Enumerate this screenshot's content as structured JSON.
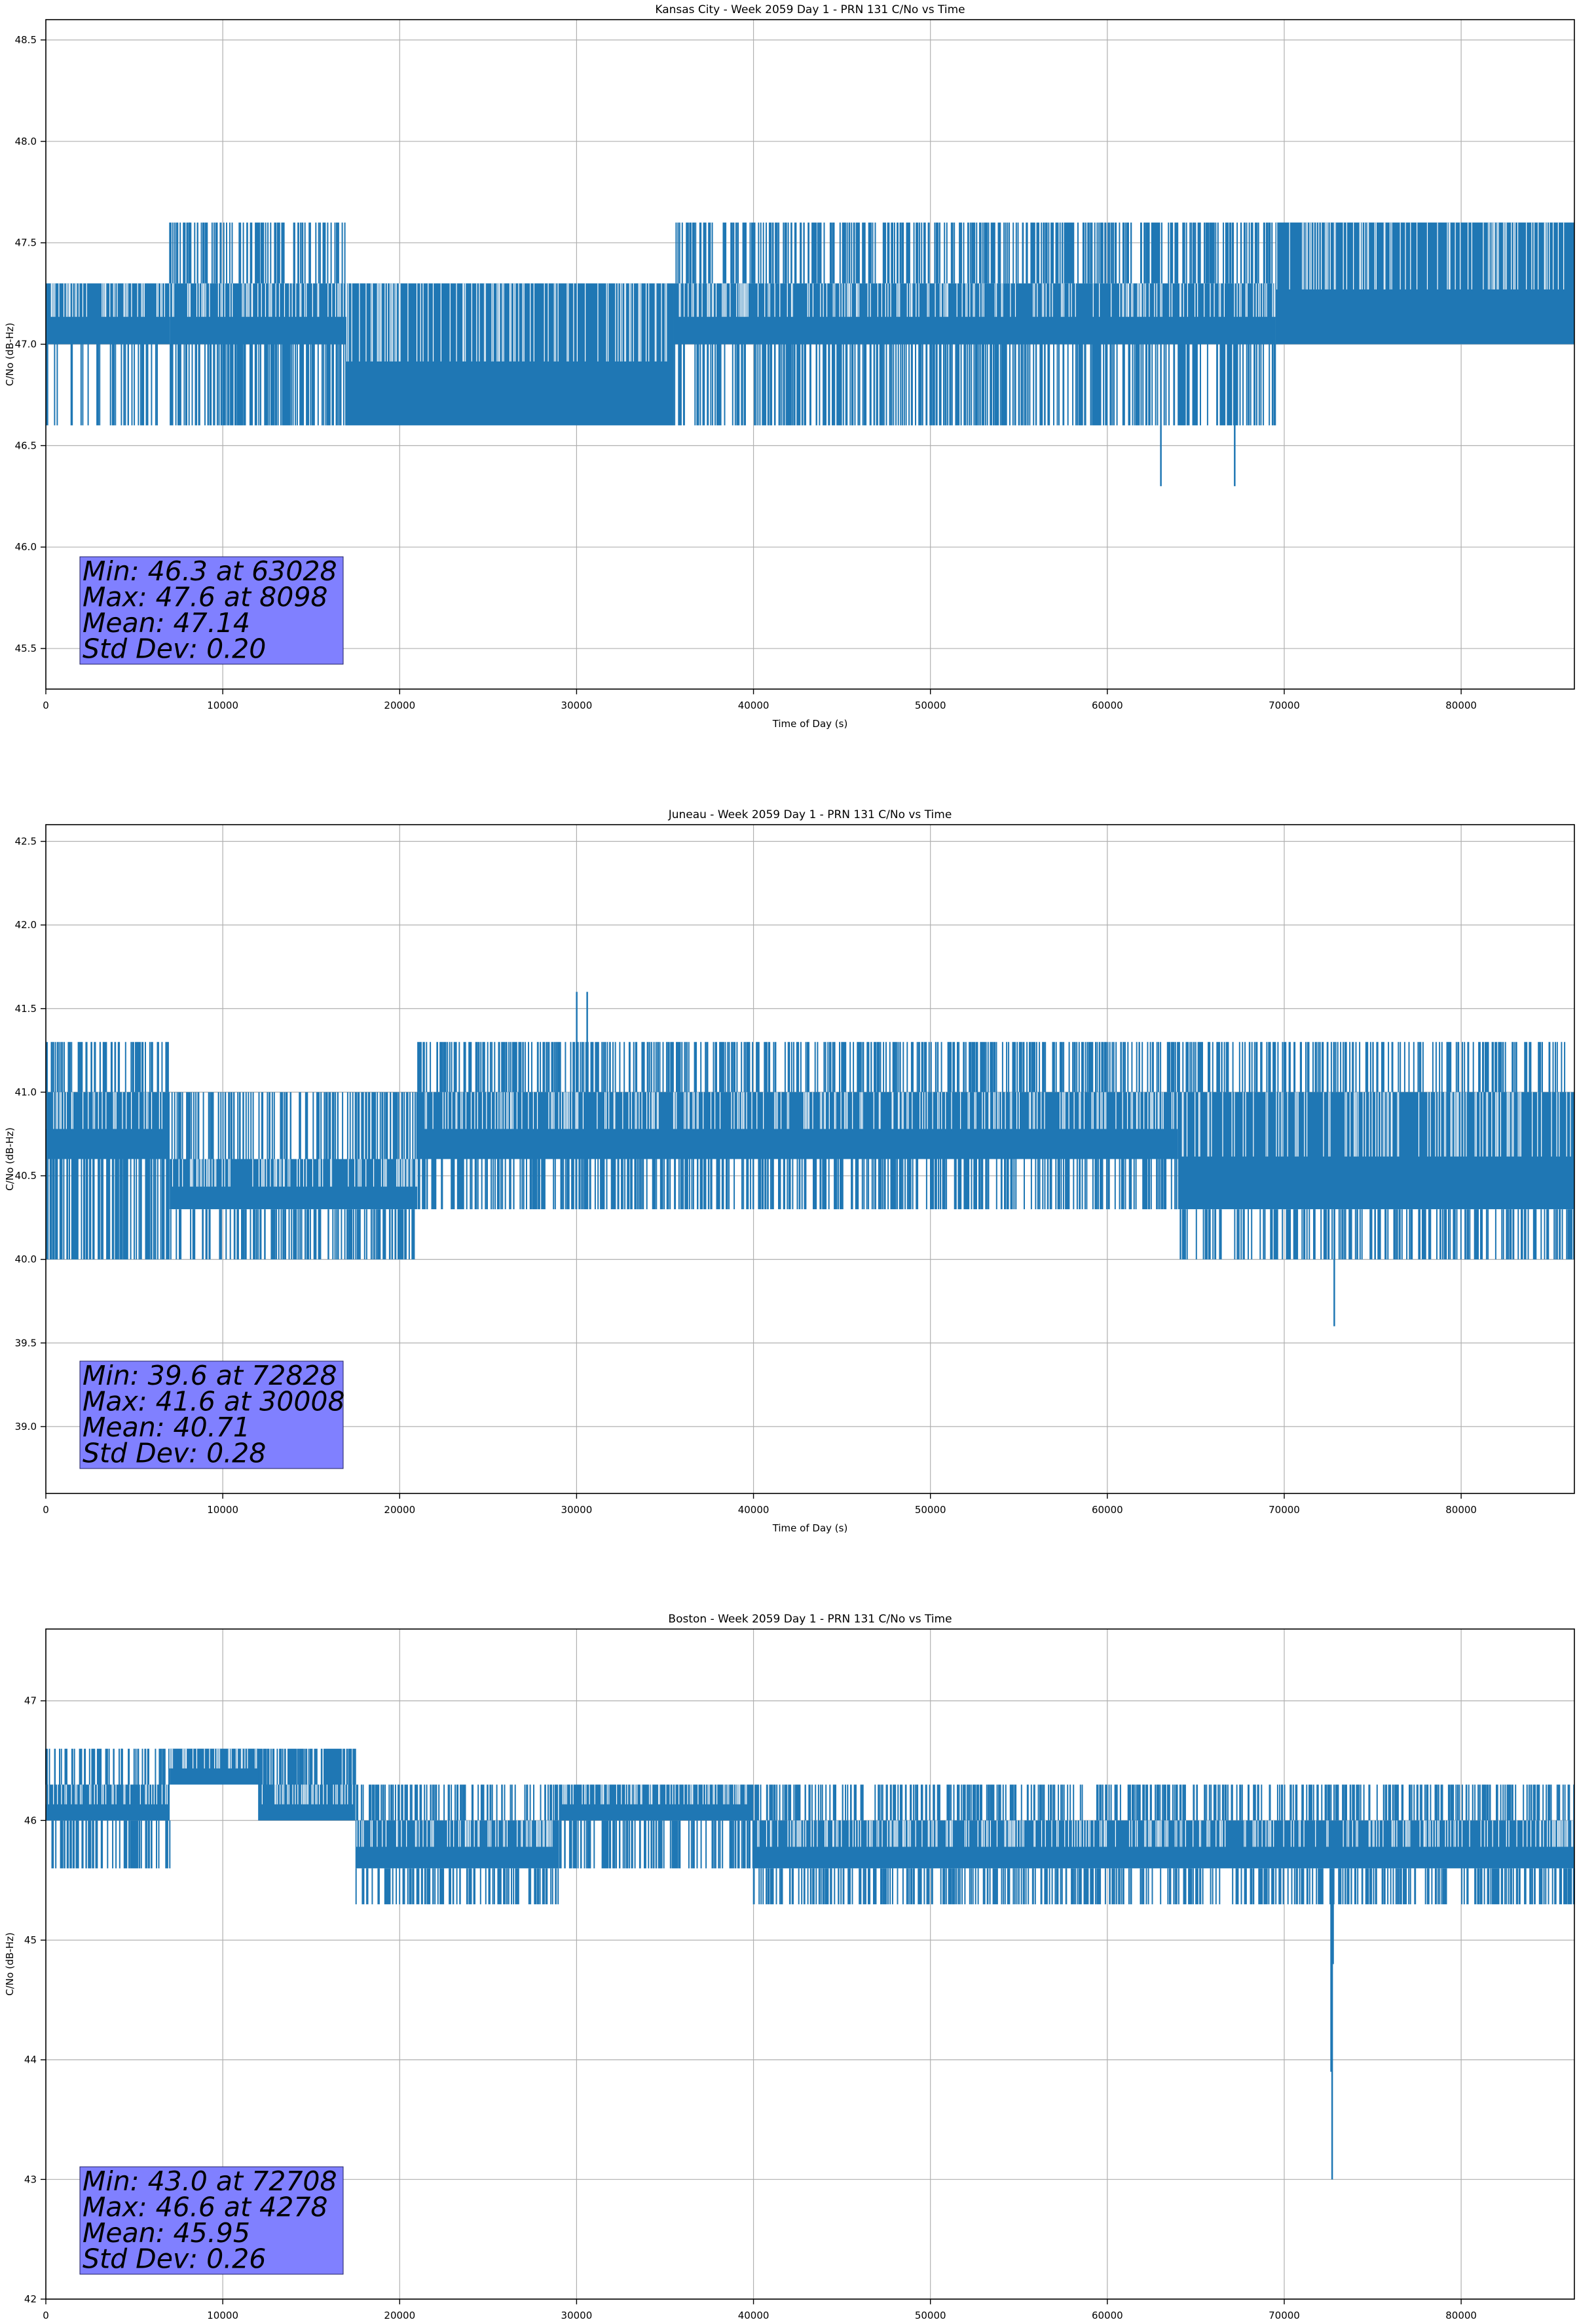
{
  "chart_data": [
    {
      "type": "line",
      "title": "Kansas City - Week 2059 Day 1 - PRN 131 C/No vs Time",
      "xlabel": "Time of Day (s)",
      "ylabel": "C/No (dB-Hz)",
      "xlim": [
        0,
        86400
      ],
      "ylim": [
        45.3,
        48.6
      ],
      "xticks": [
        0,
        10000,
        20000,
        30000,
        40000,
        50000,
        60000,
        70000,
        80000
      ],
      "yticks": [
        45.5,
        46.0,
        46.5,
        47.0,
        47.5,
        48.0,
        48.5
      ],
      "ytick_labels": [
        "45.5",
        "46.0",
        "46.5",
        "47.0",
        "47.5",
        "48.0",
        "48.5"
      ],
      "grid": true,
      "series_color": "#1f77b4",
      "segments": [
        {
          "x0": 0,
          "x1": 7000,
          "lo": 47.0,
          "hi": 47.3,
          "lo_spike": 46.6,
          "hi_spike": 47.3,
          "density": 0.45
        },
        {
          "x0": 7000,
          "x1": 17000,
          "lo": 47.0,
          "hi": 47.3,
          "lo_spike": 46.6,
          "hi_spike": 47.6,
          "density": 0.85
        },
        {
          "x0": 17000,
          "x1": 35500,
          "lo": 46.6,
          "hi": 47.3,
          "lo_spike": 46.6,
          "hi_spike": 47.3,
          "density": 0.7
        },
        {
          "x0": 35500,
          "x1": 69500,
          "lo": 47.0,
          "hi": 47.3,
          "lo_spike": 46.6,
          "hi_spike": 47.6,
          "density": 0.9
        },
        {
          "x0": 69500,
          "x1": 86400,
          "lo": 47.0,
          "hi": 47.6,
          "lo_spike": 47.0,
          "hi_spike": 47.6,
          "density": 0.6
        }
      ],
      "extreme_spikes": [
        {
          "x": 63028,
          "y": 46.3
        },
        {
          "x": 67200,
          "y": 46.3
        },
        {
          "x": 8098,
          "y": 47.6
        }
      ],
      "stats": {
        "min_line": "Min: 46.3 at 63028",
        "max_line": "Max: 47.6 at 8098",
        "mean_line": "Mean: 47.14",
        "std_line": "Std Dev: 0.20"
      },
      "stats_box_color": "#8080ff"
    },
    {
      "type": "line",
      "title": "Juneau - Week 2059 Day 1 - PRN 131 C/No vs Time",
      "xlabel": "Time of Day (s)",
      "ylabel": "C/No (dB-Hz)",
      "xlim": [
        0,
        86400
      ],
      "ylim": [
        38.6,
        42.6
      ],
      "xticks": [
        0,
        10000,
        20000,
        30000,
        40000,
        50000,
        60000,
        70000,
        80000
      ],
      "yticks": [
        39.0,
        39.5,
        40.0,
        40.5,
        41.0,
        41.5,
        42.0,
        42.5
      ],
      "ytick_labels": [
        "39.0",
        "39.5",
        "40.0",
        "40.5",
        "41.0",
        "41.5",
        "42.0",
        "42.5"
      ],
      "grid": true,
      "series_color": "#1f77b4",
      "segments": [
        {
          "x0": 0,
          "x1": 7000,
          "lo": 40.6,
          "hi": 41.0,
          "lo_spike": 40.0,
          "hi_spike": 41.3,
          "density": 0.8
        },
        {
          "x0": 7000,
          "x1": 21000,
          "lo": 40.3,
          "hi": 40.6,
          "lo_spike": 40.0,
          "hi_spike": 41.0,
          "density": 0.8
        },
        {
          "x0": 21000,
          "x1": 36000,
          "lo": 40.6,
          "hi": 41.0,
          "lo_spike": 40.3,
          "hi_spike": 41.3,
          "density": 0.9
        },
        {
          "x0": 36000,
          "x1": 64000,
          "lo": 40.6,
          "hi": 41.0,
          "lo_spike": 40.3,
          "hi_spike": 41.3,
          "density": 0.85
        },
        {
          "x0": 64000,
          "x1": 86400,
          "lo": 40.3,
          "hi": 41.0,
          "lo_spike": 40.0,
          "hi_spike": 41.3,
          "density": 0.75
        }
      ],
      "extreme_spikes": [
        {
          "x": 30008,
          "y": 41.6
        },
        {
          "x": 30600,
          "y": 41.6
        },
        {
          "x": 72828,
          "y": 39.6
        }
      ],
      "stats": {
        "min_line": "Min: 39.6 at 72828",
        "max_line": "Max: 41.6 at 30008",
        "mean_line": "Mean: 40.71",
        "std_line": "Std Dev: 0.28"
      },
      "stats_box_color": "#8080ff"
    },
    {
      "type": "line",
      "title": "Boston - Week 2059 Day 1 - PRN 131 C/No vs Time",
      "xlabel": "Time of Day (s)",
      "ylabel": "C/No (dB-Hz)",
      "xlim": [
        0,
        86400
      ],
      "ylim": [
        42.0,
        47.6
      ],
      "xticks": [
        0,
        10000,
        20000,
        30000,
        40000,
        50000,
        60000,
        70000,
        80000
      ],
      "yticks": [
        42,
        43,
        44,
        45,
        46,
        47
      ],
      "ytick_labels": [
        "42",
        "43",
        "44",
        "45",
        "46",
        "47"
      ],
      "grid": true,
      "series_color": "#1f77b4",
      "segments": [
        {
          "x0": 0,
          "x1": 7000,
          "lo": 46.0,
          "hi": 46.3,
          "lo_spike": 45.6,
          "hi_spike": 46.6,
          "density": 0.85
        },
        {
          "x0": 7000,
          "x1": 12000,
          "lo": 46.3,
          "hi": 46.6,
          "lo_spike": 46.3,
          "hi_spike": 46.6,
          "density": 0.9
        },
        {
          "x0": 12000,
          "x1": 17500,
          "lo": 46.0,
          "hi": 46.3,
          "lo_spike": 46.0,
          "hi_spike": 46.6,
          "density": 0.85
        },
        {
          "x0": 17500,
          "x1": 29000,
          "lo": 45.6,
          "hi": 46.0,
          "lo_spike": 45.3,
          "hi_spike": 46.3,
          "density": 0.8
        },
        {
          "x0": 29000,
          "x1": 40000,
          "lo": 46.0,
          "hi": 46.3,
          "lo_spike": 45.6,
          "hi_spike": 46.3,
          "density": 0.85
        },
        {
          "x0": 40000,
          "x1": 86400,
          "lo": 45.6,
          "hi": 46.0,
          "lo_spike": 45.3,
          "hi_spike": 46.3,
          "density": 0.8
        }
      ],
      "extreme_spikes": [
        {
          "x": 72708,
          "y": 43.0
        },
        {
          "x": 72650,
          "y": 43.9
        },
        {
          "x": 72760,
          "y": 44.8
        },
        {
          "x": 4278,
          "y": 46.6
        }
      ],
      "stats": {
        "min_line": "Min: 43.0 at 72708",
        "max_line": "Max: 46.6 at 4278",
        "mean_line": "Mean: 45.95",
        "std_line": "Std Dev: 0.26"
      },
      "stats_box_color": "#8080ff"
    }
  ]
}
